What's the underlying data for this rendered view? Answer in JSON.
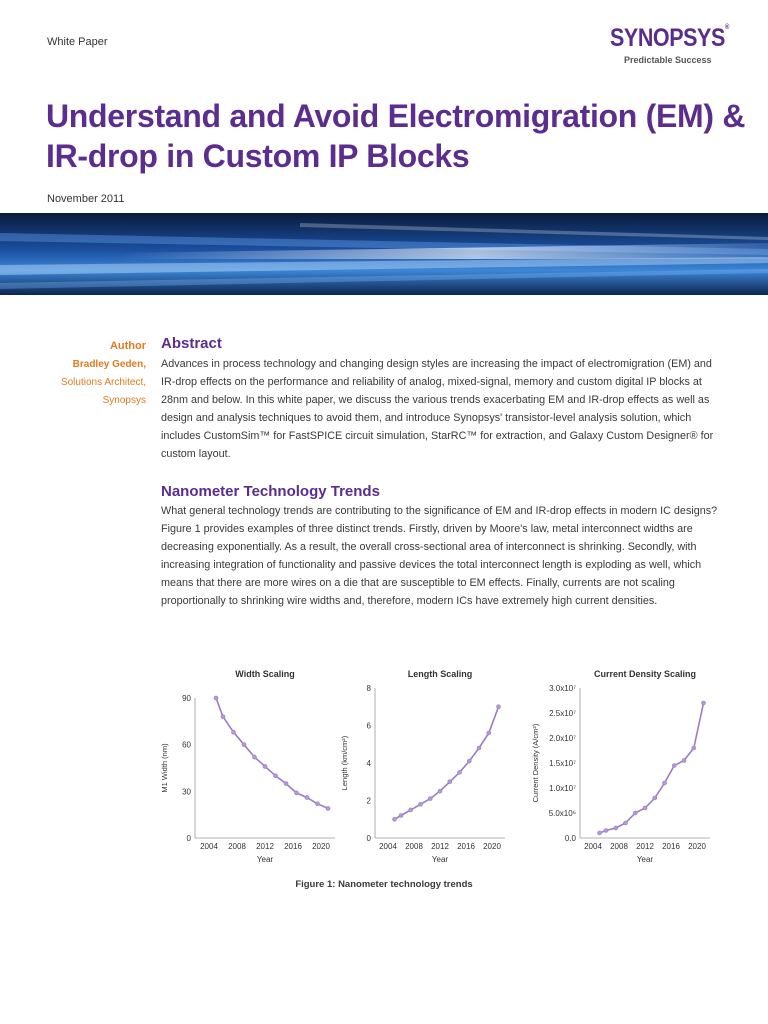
{
  "header": {
    "doc_type": "White Paper",
    "logo_text": "SYNOPSYS",
    "logo_mark": "®",
    "tagline": "Predictable Success"
  },
  "title": "Understand and Avoid Electromigration (EM) & IR-drop in Custom IP Blocks",
  "date": "November 2011",
  "colors": {
    "brand_purple": "#5b2d8e",
    "accent_orange": "#e07b1f",
    "chart_line": "#9a7cc4",
    "chart_point": "#b39ad6"
  },
  "author": {
    "label": "Author",
    "name": "Bradley Geden,",
    "role": "Solutions Architect,",
    "org": "Synopsys"
  },
  "abstract": {
    "heading": "Abstract",
    "text": "Advances in process technology and changing design styles are increasing the impact of electromigration (EM) and IR-drop effects on the performance and reliability of analog, mixed-signal, memory and custom digital IP blocks at 28nm and below. In this white paper, we discuss the various trends exacerbating EM and IR-drop effects as well as design and analysis techniques to avoid them, and introduce Synopsys' transistor-level analysis solution, which includes CustomSim™ for FastSPICE circuit simulation, StarRC™ for extraction, and Galaxy Custom Designer® for custom layout."
  },
  "trends": {
    "heading": "Nanometer Technology Trends",
    "text": "What general technology trends are contributing to the significance of EM and IR-drop effects in modern IC designs? Figure 1 provides examples of three distinct trends. Firstly, driven by Moore's law, metal interconnect widths are decreasing exponentially. As a result, the overall cross-sectional area of interconnect is shrinking. Secondly, with increasing integration of functionality and passive devices the total interconnect length is exploding as well, which means that there are more wires on a die that are susceptible to EM effects. Finally, currents are not scaling proportionally to shrinking wire widths and, therefore, modern ICs have extremely high current densities."
  },
  "chart_data": [
    {
      "type": "line",
      "title": "Width Scaling",
      "xlabel": "Year",
      "ylabel": "M1 Width (nm)",
      "xlim": [
        2002,
        2022
      ],
      "ylim": [
        0,
        90
      ],
      "xticks": [
        2004,
        2008,
        2012,
        2016,
        2020
      ],
      "yticks": [
        0,
        30,
        60,
        90
      ],
      "ytick_labels": [
        "0",
        "30",
        "60",
        "90"
      ],
      "x": [
        2005,
        2006,
        2007.5,
        2009,
        2010.5,
        2012,
        2013.5,
        2015,
        2016.5,
        2018,
        2019.5,
        2021
      ],
      "y": [
        90,
        78,
        68,
        60,
        52,
        46,
        40,
        35,
        29,
        26,
        22,
        19
      ]
    },
    {
      "type": "line",
      "title": "Length Scaling",
      "xlabel": "Year",
      "ylabel": "Length (km/cm²)",
      "xlim": [
        2002,
        2022
      ],
      "ylim": [
        0,
        8
      ],
      "xticks": [
        2004,
        2008,
        2012,
        2016,
        2020
      ],
      "yticks": [
        0,
        2,
        4,
        6,
        8
      ],
      "ytick_labels": [
        "0",
        "2",
        "4",
        "6",
        "8"
      ],
      "x": [
        2005,
        2006,
        2007.5,
        2009,
        2010.5,
        2012,
        2013.5,
        2015,
        2016.5,
        2018,
        2019.5,
        2021
      ],
      "y": [
        1.0,
        1.2,
        1.5,
        1.8,
        2.1,
        2.5,
        3.0,
        3.5,
        4.1,
        4.8,
        5.6,
        7.0
      ]
    },
    {
      "type": "line",
      "title": "Current Density Scaling",
      "xlabel": "Year",
      "ylabel": "Current Density (A/cm²)",
      "xlim": [
        2002,
        2022
      ],
      "ylim": [
        0,
        30000000
      ],
      "xticks": [
        2004,
        2008,
        2012,
        2016,
        2020
      ],
      "yticks": [
        0,
        5000000,
        10000000,
        15000000,
        20000000,
        25000000,
        30000000
      ],
      "ytick_labels": [
        "0.0",
        "5.0x10⁶",
        "1.0x10⁷",
        "1.5x10⁷",
        "2.0x10⁷",
        "2.5x10⁷",
        "3.0x10⁷"
      ],
      "x": [
        2005,
        2006,
        2007.5,
        2009,
        2010.5,
        2012,
        2013.5,
        2015,
        2016.5,
        2018,
        2019.5,
        2021
      ],
      "y": [
        1000000,
        1500000,
        2000000,
        3000000,
        5000000,
        6000000,
        8000000,
        11000000,
        14500000,
        15500000,
        18000000,
        27000000
      ]
    }
  ],
  "figure_caption": "Figure 1: Nanometer technology trends"
}
